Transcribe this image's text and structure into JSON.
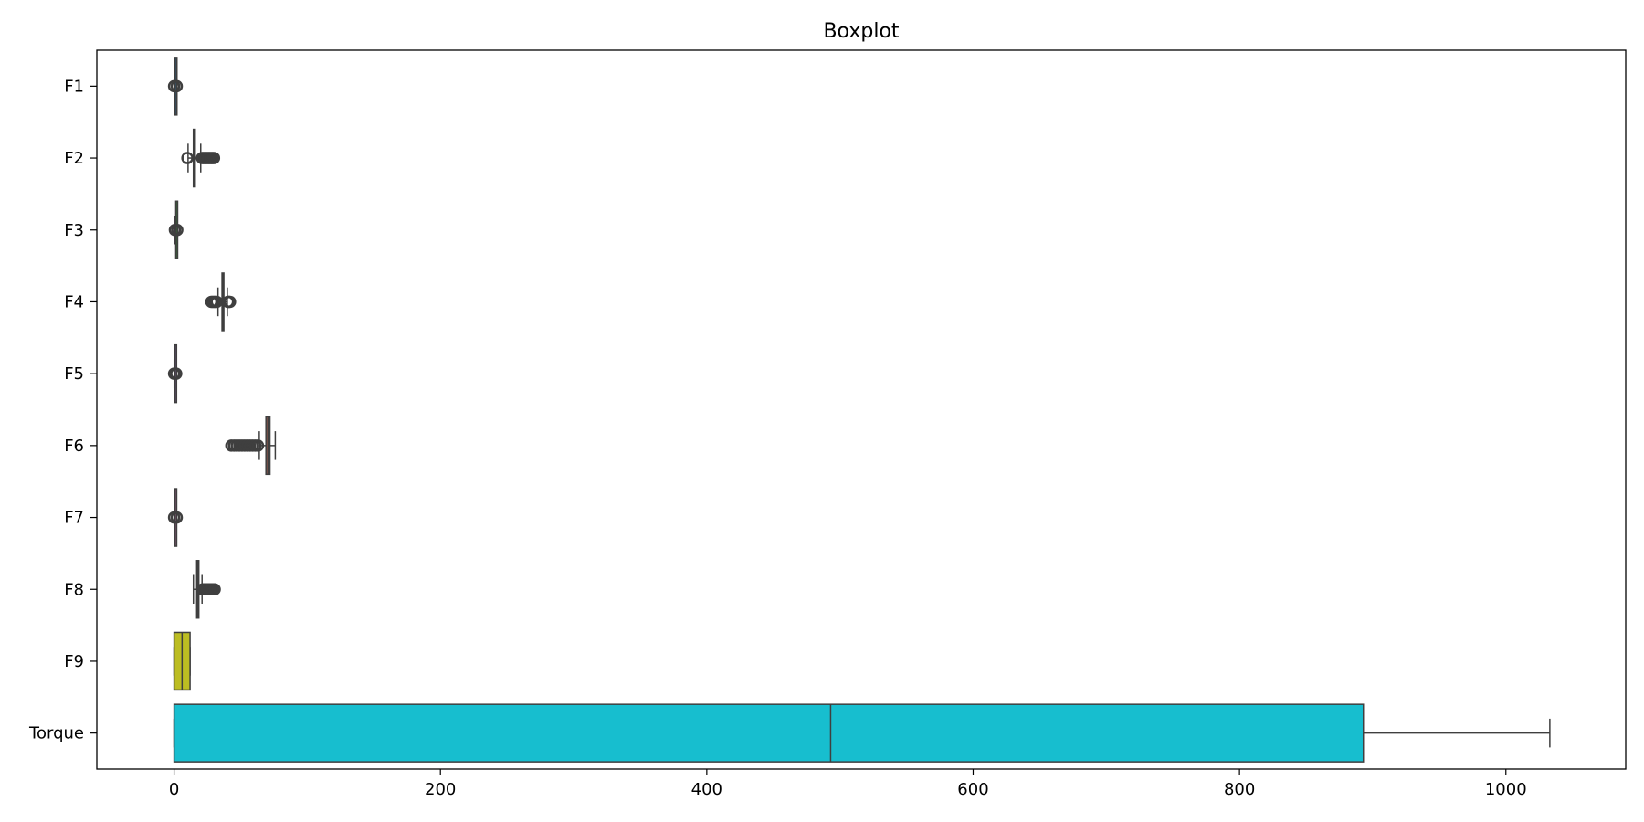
{
  "chart_data": {
    "type": "boxplot",
    "orientation": "horizontal",
    "title": "Boxplot",
    "xlabel": "",
    "ylabel": "",
    "xlim": [
      -58,
      1090
    ],
    "xticks": [
      0,
      200,
      400,
      600,
      800,
      1000
    ],
    "xtick_labels": [
      "0",
      "200",
      "400",
      "600",
      "800",
      "1000"
    ],
    "grid": false,
    "categories": [
      "F1",
      "F2",
      "F3",
      "F4",
      "F5",
      "F6",
      "F7",
      "F8",
      "F9",
      "Torque"
    ],
    "series": [
      {
        "category": "F1",
        "color": "#1f77b4",
        "whisker_low": 0.2,
        "q1": 0.8,
        "median": 1.0,
        "q3": 1.2,
        "whisker_high": 1.8,
        "outliers": [
          0.0,
          2.0
        ]
      },
      {
        "category": "F2",
        "color": "#ff7f0e",
        "whisker_low": 10.5,
        "q1": 14.5,
        "median": 15.0,
        "q3": 15.5,
        "whisker_high": 20.0,
        "outliers": [
          10.0,
          21,
          22,
          23,
          24,
          25,
          26,
          27,
          28,
          29,
          30
        ]
      },
      {
        "category": "F3",
        "color": "#2ca02c",
        "whisker_low": 0.8,
        "q1": 1.3,
        "median": 1.5,
        "q3": 1.7,
        "whisker_high": 2.2,
        "outliers": [
          0.6,
          2.4
        ]
      },
      {
        "category": "F4",
        "color": "#d62728",
        "whisker_low": 33.0,
        "q1": 36.0,
        "median": 36.6,
        "q3": 37.2,
        "whisker_high": 40.0,
        "outliers": [
          28,
          29,
          30,
          31,
          32,
          40.5,
          41,
          42
        ]
      },
      {
        "category": "F5",
        "color": "#9467bd",
        "whisker_low": 0.1,
        "q1": 0.5,
        "median": 0.7,
        "q3": 0.9,
        "whisker_high": 1.3,
        "outliers": [
          0.0,
          1.6
        ]
      },
      {
        "category": "F6",
        "color": "#8c564b",
        "whisker_low": 64.0,
        "q1": 69.0,
        "median": 70.5,
        "q3": 72.0,
        "whisker_high": 76.0,
        "outliers": [
          43,
          45,
          47,
          49,
          51,
          53,
          55,
          57,
          59,
          61,
          63
        ]
      },
      {
        "category": "F7",
        "color": "#e377c2",
        "whisker_low": 0.2,
        "q1": 0.6,
        "median": 0.8,
        "q3": 1.0,
        "whisker_high": 1.4,
        "outliers": [
          0.0,
          2.0
        ]
      },
      {
        "category": "F8",
        "color": "#7f7f7f",
        "whisker_low": 14.5,
        "q1": 17.0,
        "median": 17.8,
        "q3": 18.6,
        "whisker_high": 21.0,
        "outliers": [
          21.5,
          22.5,
          23.5,
          24.5,
          25.5,
          26.5,
          27.5,
          28.5,
          29.5,
          30.5
        ]
      },
      {
        "category": "F9",
        "color": "#bcbd22",
        "whisker_low": 0.0,
        "q1": 0.0,
        "median": 6.0,
        "q3": 12.0,
        "whisker_high": 12.0,
        "outliers": []
      },
      {
        "category": "Torque",
        "color": "#17becf",
        "whisker_low": 0.0,
        "q1": 0.0,
        "median": 493.0,
        "q3": 893.0,
        "whisker_high": 1033.0,
        "outliers": []
      }
    ]
  }
}
